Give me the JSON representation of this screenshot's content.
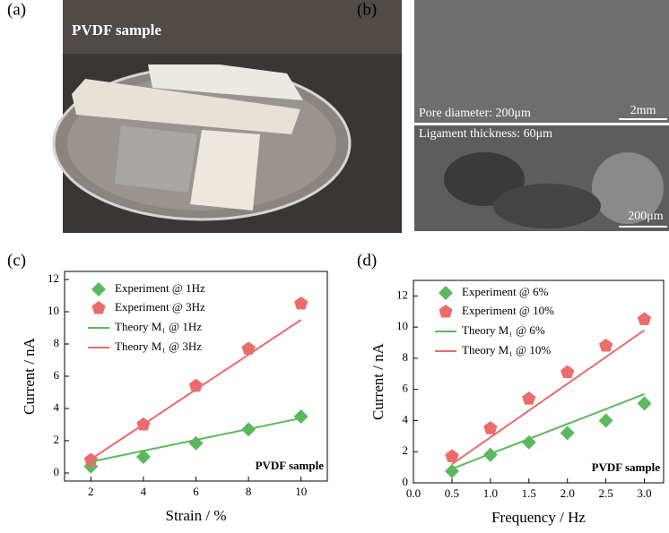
{
  "panels": {
    "a": {
      "label": "(a)",
      "caption": "PVDF sample"
    },
    "b": {
      "label": "(b)",
      "top_caption": "Pore diameter: 200μm",
      "top_scale": "2mm",
      "bottom_caption": "Ligament thickness: 60μm",
      "bottom_scale": "200μm"
    },
    "c": {
      "label": "(c)"
    },
    "d": {
      "label": "(d)"
    }
  },
  "chart_data": [
    {
      "type": "scatter",
      "x_label": "Strain / %",
      "y_label": "Current / nA",
      "annotation": "PVDF sample",
      "x": [
        2,
        4,
        6,
        8,
        10
      ],
      "xlim": [
        1,
        11
      ],
      "xticks": [
        2,
        4,
        6,
        8,
        10
      ],
      "ylim": [
        -0.5,
        12.5
      ],
      "yticks": [
        0,
        2,
        4,
        6,
        8,
        10,
        12
      ],
      "series": [
        {
          "name": "Experiment @ 1Hz",
          "color": "#5cb85c",
          "marker": "diamond",
          "values": [
            0.4,
            1.0,
            1.85,
            2.7,
            3.5
          ]
        },
        {
          "name": "Experiment @ 3Hz",
          "color": "#ec6b6b",
          "marker": "pentagon",
          "values": [
            0.8,
            3.0,
            5.4,
            7.7,
            10.5
          ]
        },
        {
          "name": "Theory M₁ @ 1Hz",
          "color": "#5cb85c",
          "marker": "line",
          "x": [
            2,
            10
          ],
          "values": [
            0.7,
            3.4
          ]
        },
        {
          "name": "Theory M₁ @ 3Hz",
          "color": "#ec6b6b",
          "marker": "line",
          "x": [
            2,
            10
          ],
          "values": [
            0.85,
            9.5
          ]
        }
      ]
    },
    {
      "type": "scatter",
      "x_label": "Frequency / Hz",
      "y_label": "Current / nA",
      "annotation": "PVDF sample",
      "x": [
        0.5,
        1.0,
        1.5,
        2.0,
        2.5,
        3.0
      ],
      "xlim": [
        0,
        3.25
      ],
      "xticks": [
        {
          "value": 0,
          "label": "0.0"
        },
        0.5,
        {
          "value": 1,
          "label": "1.0"
        },
        1.5,
        {
          "value": 2,
          "label": "2.0"
        },
        2.5,
        {
          "value": 3,
          "label": "3.0"
        }
      ],
      "ylim": [
        0,
        13
      ],
      "yticks": [
        0,
        2,
        4,
        6,
        8,
        10,
        12
      ],
      "series": [
        {
          "name": "Experiment @ 6%",
          "color": "#5cb85c",
          "marker": "diamond",
          "values": [
            0.75,
            1.8,
            2.6,
            3.2,
            4.0,
            5.1
          ]
        },
        {
          "name": "Experiment @ 10%",
          "color": "#ec6b6b",
          "marker": "pentagon",
          "values": [
            1.7,
            3.5,
            5.4,
            7.1,
            8.8,
            10.5
          ]
        },
        {
          "name": "Theory M₁ @ 6%",
          "color": "#5cb85c",
          "marker": "line",
          "x": [
            0.5,
            3
          ],
          "values": [
            0.9,
            5.7
          ]
        },
        {
          "name": "Theory M₁ @ 10%",
          "color": "#ec6b6b",
          "marker": "line",
          "x": [
            0.5,
            3
          ],
          "values": [
            1.2,
            9.8
          ]
        }
      ]
    }
  ]
}
